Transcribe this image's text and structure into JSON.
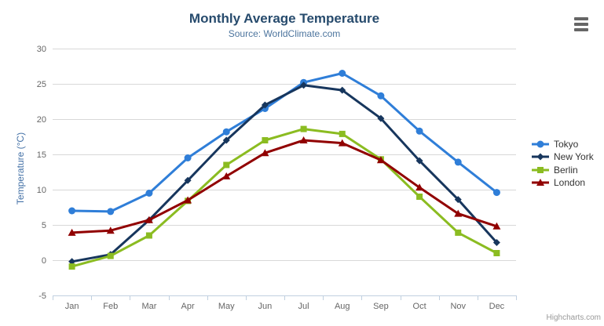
{
  "icons": {
    "context_menu": "hamburger-icon"
  },
  "chart_data": {
    "type": "line",
    "title": "Monthly Average Temperature",
    "subtitle": "Source: WorldClimate.com",
    "xlabel": "",
    "ylabel": "Temperature (°C)",
    "ylim": [
      -5,
      30
    ],
    "yticks": [
      -5,
      0,
      5,
      10,
      15,
      20,
      25,
      30
    ],
    "grid": true,
    "legend_position": "right",
    "credit": "Highcharts.com",
    "categories": [
      "Jan",
      "Feb",
      "Mar",
      "Apr",
      "May",
      "Jun",
      "Jul",
      "Aug",
      "Sep",
      "Oct",
      "Nov",
      "Dec"
    ],
    "series": [
      {
        "name": "Tokyo",
        "color": "#2f7ed8",
        "marker": "circle",
        "values": [
          7.0,
          6.9,
          9.5,
          14.5,
          18.2,
          21.5,
          25.2,
          26.5,
          23.3,
          18.3,
          13.9,
          9.6
        ]
      },
      {
        "name": "New York",
        "color": "#17365d",
        "marker": "diamond",
        "values": [
          -0.2,
          0.8,
          5.7,
          11.3,
          17.0,
          22.0,
          24.8,
          24.1,
          20.1,
          14.1,
          8.6,
          2.5
        ]
      },
      {
        "name": "Berlin",
        "color": "#8bbc21",
        "marker": "square",
        "values": [
          -0.9,
          0.6,
          3.5,
          8.4,
          13.5,
          17.0,
          18.6,
          17.9,
          14.3,
          9.0,
          3.9,
          1.0
        ]
      },
      {
        "name": "London",
        "color": "#910000",
        "marker": "triangle",
        "values": [
          3.9,
          4.2,
          5.7,
          8.5,
          11.9,
          15.2,
          17.0,
          16.6,
          14.2,
          10.3,
          6.6,
          4.8
        ]
      }
    ],
    "axis_colors": {
      "grid_line": "#d8d8d8",
      "axis_line": "#c0d0e0",
      "tick_label": "#666666"
    }
  }
}
